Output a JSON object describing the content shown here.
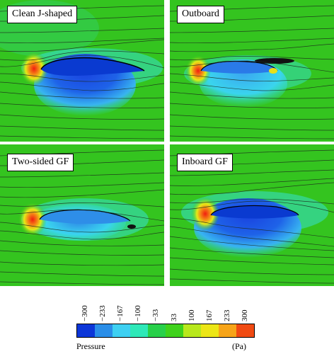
{
  "panels": [
    {
      "label": "Clean J-shaped",
      "case": "clean"
    },
    {
      "label": "Outboard",
      "case": "outboard"
    },
    {
      "label": "Two-sided GF",
      "case": "twosided"
    },
    {
      "label": "Inboard GF",
      "case": "inboard"
    }
  ],
  "colorbar": {
    "ticks": [
      "−300",
      "−233",
      "−167",
      "−100",
      "−33",
      "33",
      "100",
      "167",
      "233",
      "300"
    ],
    "colors": [
      "#0c36d8",
      "#2a8ee8",
      "#3ed0f2",
      "#2ee8b8",
      "#28d04a",
      "#3fd21c",
      "#b8e81c",
      "#ece616",
      "#f7a418",
      "#f04a12"
    ],
    "left_label": "Pressure",
    "right_label": "(Pa)"
  }
}
